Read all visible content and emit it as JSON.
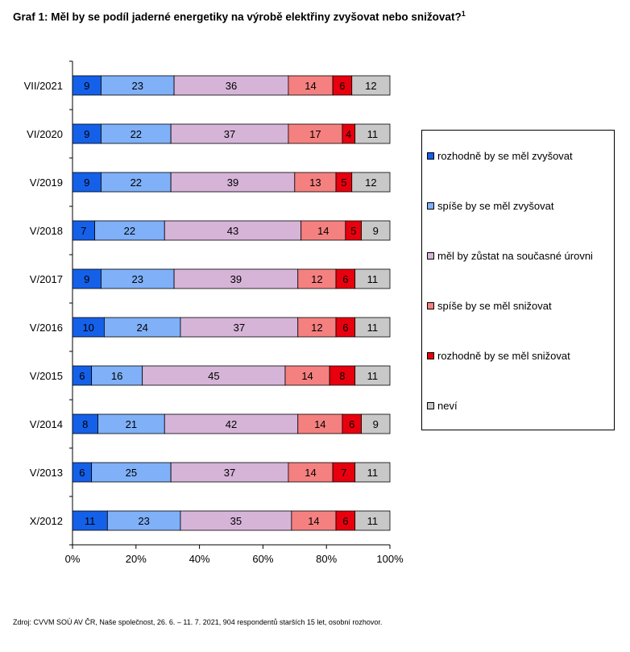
{
  "title": {
    "text": "Graf 1: Měl by se podíl jaderné energetiky na výrobě elektřiny zvyšovat nebo snižovat?",
    "footnote_marker": "1"
  },
  "source": "Zdroj: CVVM SOÚ AV ČR, Naše společnost, 26. 6. – 11. 7. 2021, 904 respondentů starších 15 let, osobní rozhovor.",
  "chart_data": {
    "type": "bar",
    "orientation": "horizontal",
    "stacked": "percent",
    "categories": [
      "VII/2021",
      "VI/2020",
      "V/2019",
      "V/2018",
      "V/2017",
      "V/2016",
      "V/2015",
      "V/2014",
      "V/2013",
      "X/2012"
    ],
    "series": [
      {
        "name": "rozhodně by se měl zvyšovat",
        "color": "#1560e8",
        "values": [
          9,
          9,
          9,
          7,
          9,
          10,
          6,
          8,
          6,
          11
        ]
      },
      {
        "name": "spíše by se měl zvyšovat",
        "color": "#7fb0f8",
        "values": [
          23,
          22,
          22,
          22,
          23,
          24,
          16,
          21,
          25,
          23
        ]
      },
      {
        "name": "měl by zůstat na současné úrovni",
        "color": "#d6b4d8",
        "values": [
          36,
          37,
          39,
          43,
          39,
          37,
          45,
          42,
          37,
          35
        ]
      },
      {
        "name": "spíše by se měl snižovat",
        "color": "#f58080",
        "values": [
          14,
          17,
          13,
          14,
          12,
          12,
          14,
          14,
          14,
          14
        ]
      },
      {
        "name": "rozhodně by se měl snižovat",
        "color": "#e8000e",
        "values": [
          6,
          4,
          5,
          5,
          6,
          6,
          8,
          6,
          7,
          6
        ]
      },
      {
        "name": "neví",
        "color": "#c8c8c8",
        "values": [
          12,
          11,
          12,
          9,
          11,
          11,
          11,
          9,
          11,
          11
        ]
      }
    ],
    "x_ticks": [
      "0%",
      "20%",
      "40%",
      "60%",
      "80%",
      "100%"
    ],
    "xlim": [
      0,
      100
    ],
    "grid": false,
    "legend_position": "right"
  }
}
